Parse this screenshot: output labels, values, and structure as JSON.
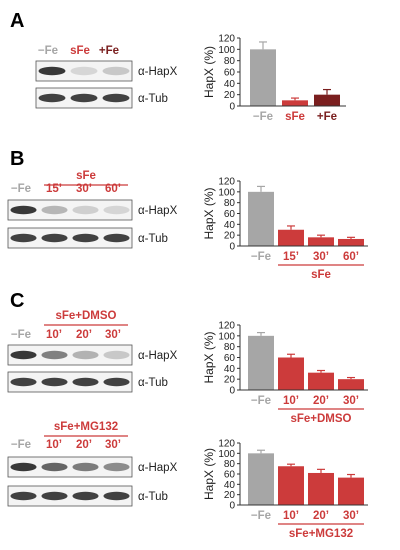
{
  "panel_letters": [
    "A",
    "B",
    "C"
  ],
  "colors": {
    "gray": "#a6a6a6",
    "red": "#cc3b3b",
    "dark_red": "#7a1f1f",
    "light_red": "#e36c6c"
  },
  "blot_labels": {
    "target": "α-HapX",
    "loading": "α-Tub"
  },
  "panels": [
    {
      "letter": "A",
      "lane_labels": [
        "−Fe",
        "sFe",
        "+Fe"
      ],
      "group_label": ""
    },
    {
      "letter": "B",
      "lane_labels": [
        "−Fe",
        "15’",
        "30’",
        "60’"
      ],
      "group_label": "sFe"
    },
    {
      "letter": "C",
      "lane_labels": [
        "−Fe",
        "10’",
        "20’",
        "30’"
      ],
      "group_label": "sFe+DMSO"
    },
    {
      "letter": "",
      "lane_labels": [
        "−Fe",
        "10’",
        "20’",
        "30’"
      ],
      "group_label": "sFe+MG132"
    }
  ],
  "chart_data": [
    {
      "type": "bar",
      "ylabel": "HapX (%)",
      "ylim": [
        0,
        120
      ],
      "yticks": [
        0,
        20,
        40,
        60,
        80,
        100,
        120
      ],
      "categories": [
        "−Fe",
        "sFe",
        "+Fe"
      ],
      "values": [
        100,
        10,
        20
      ],
      "errors": [
        13,
        4,
        9
      ],
      "group_label": ""
    },
    {
      "type": "bar",
      "ylabel": "HapX (%)",
      "ylim": [
        0,
        120
      ],
      "yticks": [
        0,
        20,
        40,
        60,
        80,
        100,
        120
      ],
      "categories": [
        "−Fe",
        "15’",
        "30’",
        "60’"
      ],
      "values": [
        100,
        30,
        16,
        13
      ],
      "errors": [
        10,
        7,
        4,
        3
      ],
      "group_label": "sFe"
    },
    {
      "type": "bar",
      "ylabel": "HapX (%)",
      "ylim": [
        0,
        120
      ],
      "yticks": [
        0,
        20,
        40,
        60,
        80,
        100,
        120
      ],
      "categories": [
        "−Fe",
        "10’",
        "20’",
        "30’"
      ],
      "values": [
        100,
        60,
        32,
        20
      ],
      "errors": [
        6,
        6,
        4,
        3
      ],
      "group_label": "sFe+DMSO"
    },
    {
      "type": "bar",
      "ylabel": "HapX (%)",
      "ylim": [
        0,
        120
      ],
      "yticks": [
        0,
        20,
        40,
        60,
        80,
        100,
        120
      ],
      "categories": [
        "−Fe",
        "10’",
        "20’",
        "30’"
      ],
      "values": [
        100,
        75,
        62,
        53
      ],
      "errors": [
        6,
        4,
        7,
        6
      ],
      "group_label": "sFe+MG132"
    }
  ]
}
